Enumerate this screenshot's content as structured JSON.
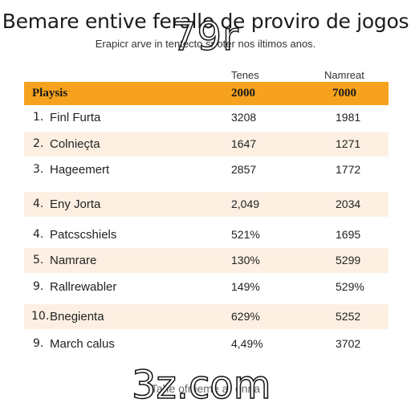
{
  "title": "Bemare entive ferallo de proviro de jogos",
  "subtitle": "Erapicr arve in tentecto sr oter nos iltimos anos.",
  "watermarks": {
    "top": "79r",
    "bottom": "3z.com"
  },
  "columns": {
    "col1": "Tenes",
    "col2": "Namreat"
  },
  "header": {
    "label": "Playsis",
    "v1": "2000",
    "v2": "7000"
  },
  "rows": [
    {
      "num": "1.",
      "name": "Finl Furta",
      "v1": "3208",
      "v2": "1981"
    },
    {
      "num": "2.",
      "name": "Colnieçta",
      "v1": "1647",
      "v2": "1271"
    },
    {
      "num": "3.",
      "name": "Hageemert",
      "v1": "2857",
      "v2": "1772"
    },
    {
      "num": "4.",
      "name": "Eny Jorta",
      "v1": "2,049",
      "v2": "2034"
    },
    {
      "num": "4.",
      "name": "Patcscshiels",
      "v1": "521%",
      "v2": "1695"
    },
    {
      "num": "5.",
      "name": "Namrare",
      "v1": "130%",
      "v2": "5299"
    },
    {
      "num": "9.",
      "name": "Rallrewabler",
      "v1": "149%",
      "v2": "529%"
    },
    {
      "num": "10.",
      "name": "Bnegienta",
      "v1": "629%",
      "v2": "5252"
    },
    {
      "num": "9.",
      "name": "March calus",
      "v1": "4,49%",
      "v2": "3702"
    }
  ],
  "footer": "Tahe ofrtieme ar onna",
  "colors": {
    "header_bg": "#f7a21f",
    "shaded_row": "#fdf0e3"
  }
}
